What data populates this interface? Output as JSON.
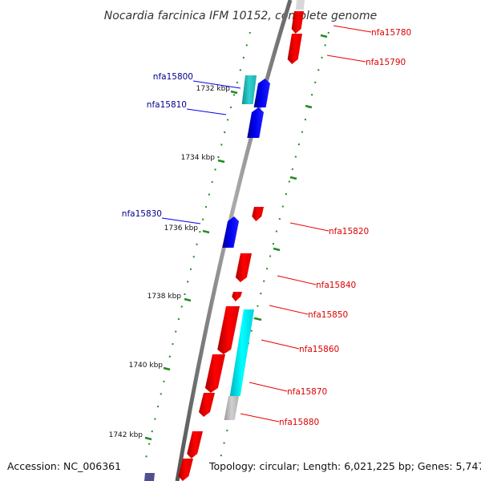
{
  "title": "Nocardia farcinica IFM 10152, complete genome",
  "footer": {
    "accession": "Accession: NC_006361",
    "topology": "Topology: circular; Length: 6,021,225 bp; Genes: 5,747"
  },
  "colors": {
    "forward_gene": "#0000ee",
    "reverse_gene": "#ee0000",
    "forward_label": "#00008b",
    "reverse_label": "#dd0000",
    "backbone": "#777777",
    "tick": "#228b22",
    "cds_teal": "#20c0c0",
    "cds_cyan": "#00e8f0",
    "gray_feature": "#bbbbbb",
    "purple_feature": "#505090"
  },
  "ticks": [
    {
      "label": "1732 kbp"
    },
    {
      "label": "1734 kbp"
    },
    {
      "label": "1736 kbp"
    },
    {
      "label": "1738 kbp"
    },
    {
      "label": "1740 kbp"
    },
    {
      "label": "1742 kbp"
    }
  ],
  "genes_forward": [
    {
      "label": "nfa15800"
    },
    {
      "label": "nfa15810"
    },
    {
      "label": "nfa15830"
    }
  ],
  "genes_reverse": [
    {
      "label": "nfa15780"
    },
    {
      "label": "nfa15790"
    },
    {
      "label": "nfa15820"
    },
    {
      "label": "nfa15840"
    },
    {
      "label": "nfa15850"
    },
    {
      "label": "nfa15860"
    },
    {
      "label": "nfa15870"
    },
    {
      "label": "nfa15880"
    }
  ]
}
